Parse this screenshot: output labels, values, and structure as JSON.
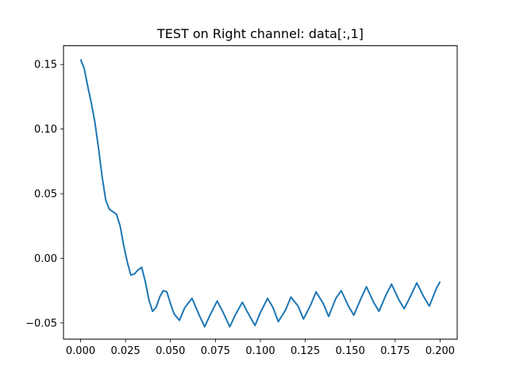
{
  "chart_data": {
    "type": "line",
    "title": "TEST on Right channel: data[:,1]",
    "xlabel": "",
    "ylabel": "",
    "xlim": [
      -0.0095,
      0.2095
    ],
    "ylim": [
      -0.0625,
      0.1645
    ],
    "xticks": [
      0.0,
      0.025,
      0.05,
      0.075,
      0.1,
      0.125,
      0.15,
      0.175,
      0.2
    ],
    "xtick_labels": [
      "0.000",
      "0.025",
      "0.050",
      "0.075",
      "0.100",
      "0.125",
      "0.150",
      "0.175",
      "0.200"
    ],
    "yticks": [
      -0.05,
      0.0,
      0.05,
      0.1,
      0.15
    ],
    "ytick_labels": [
      "−0.05",
      "0.00",
      "0.05",
      "0.10",
      "0.15"
    ],
    "grid": false,
    "series": [
      {
        "color": "#1f77b4",
        "x": [
          0.0,
          0.002,
          0.004,
          0.006,
          0.008,
          0.01,
          0.012,
          0.014,
          0.016,
          0.018,
          0.02,
          0.022,
          0.024,
          0.026,
          0.028,
          0.03,
          0.032,
          0.034,
          0.036,
          0.038,
          0.04,
          0.042,
          0.044,
          0.046,
          0.048,
          0.05,
          0.052,
          0.055,
          0.058,
          0.062,
          0.066,
          0.069,
          0.072,
          0.076,
          0.079,
          0.083,
          0.086,
          0.09,
          0.093,
          0.097,
          0.1,
          0.104,
          0.107,
          0.11,
          0.114,
          0.117,
          0.121,
          0.124,
          0.128,
          0.131,
          0.135,
          0.138,
          0.142,
          0.145,
          0.149,
          0.152,
          0.156,
          0.159,
          0.163,
          0.166,
          0.17,
          0.173,
          0.177,
          0.18,
          0.184,
          0.187,
          0.191,
          0.194,
          0.198,
          0.2
        ],
        "y": [
          0.154,
          0.147,
          0.133,
          0.12,
          0.105,
          0.085,
          0.063,
          0.045,
          0.038,
          0.036,
          0.034,
          0.025,
          0.01,
          -0.003,
          -0.013,
          -0.012,
          -0.009,
          -0.007,
          -0.018,
          -0.032,
          -0.041,
          -0.038,
          -0.03,
          -0.025,
          -0.026,
          -0.035,
          -0.043,
          -0.048,
          -0.038,
          -0.031,
          -0.044,
          -0.053,
          -0.044,
          -0.033,
          -0.041,
          -0.053,
          -0.044,
          -0.034,
          -0.042,
          -0.052,
          -0.042,
          -0.031,
          -0.038,
          -0.049,
          -0.04,
          -0.03,
          -0.037,
          -0.047,
          -0.036,
          -0.026,
          -0.035,
          -0.045,
          -0.031,
          -0.025,
          -0.037,
          -0.044,
          -0.031,
          -0.022,
          -0.034,
          -0.041,
          -0.028,
          -0.02,
          -0.032,
          -0.039,
          -0.028,
          -0.019,
          -0.03,
          -0.037,
          -0.023,
          -0.018
        ]
      }
    ]
  }
}
